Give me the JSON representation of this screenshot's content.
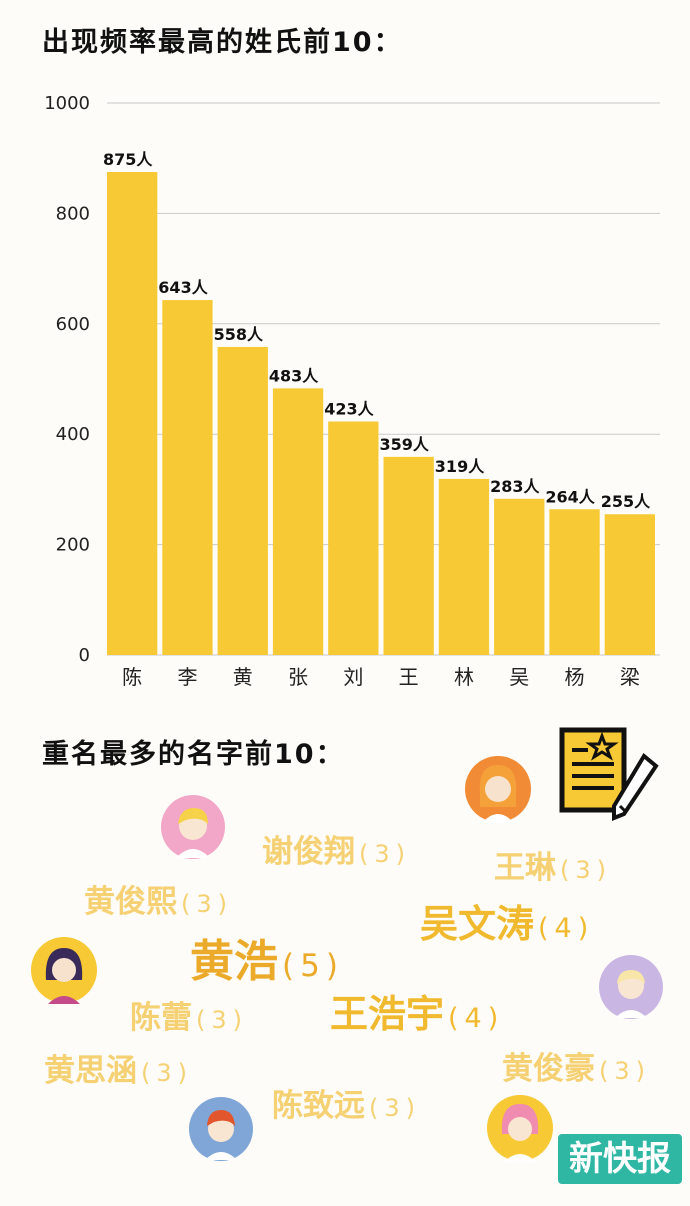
{
  "section1": {
    "title": "出现频率最高的姓氏前10："
  },
  "section2": {
    "title": "重名最多的名字前10："
  },
  "chart_data": {
    "type": "bar",
    "categories": [
      "陈",
      "李",
      "黄",
      "张",
      "刘",
      "王",
      "林",
      "吴",
      "杨",
      "梁"
    ],
    "values": [
      875,
      643,
      558,
      483,
      423,
      359,
      319,
      283,
      264,
      255
    ],
    "value_labels": [
      "875人",
      "643人",
      "558人",
      "483人",
      "423人",
      "359人",
      "319人",
      "283人",
      "264人",
      "255人"
    ],
    "ylim": [
      0,
      1000
    ],
    "yticks": [
      0,
      200,
      400,
      600,
      800,
      1000
    ],
    "grid": true,
    "bar_color": "#f7c934",
    "title": "出现频率最高的姓氏前10："
  },
  "names": [
    {
      "name": "谢俊翔",
      "count": "(3)",
      "style": "light"
    },
    {
      "name": "王琳",
      "count": "(3)",
      "style": "light"
    },
    {
      "name": "黄俊熙",
      "count": "(3)",
      "style": "light"
    },
    {
      "name": "吴文涛",
      "count": "(4)",
      "style": "dark"
    },
    {
      "name": "黄浩",
      "count": "(5)",
      "style": "big"
    },
    {
      "name": "陈蕾",
      "count": "(3)",
      "style": "light"
    },
    {
      "name": "王浩宇",
      "count": "(4)",
      "style": "dark"
    },
    {
      "name": "黄思涵",
      "count": "(3)",
      "style": "light"
    },
    {
      "name": "黄俊豪",
      "count": "(3)",
      "style": "light"
    },
    {
      "name": "陈致远",
      "count": "(3)",
      "style": "light"
    }
  ],
  "logo": {
    "text": "新快报"
  },
  "icons": [
    "document-star-icon",
    "pencil-icon",
    "avatar-icon"
  ]
}
